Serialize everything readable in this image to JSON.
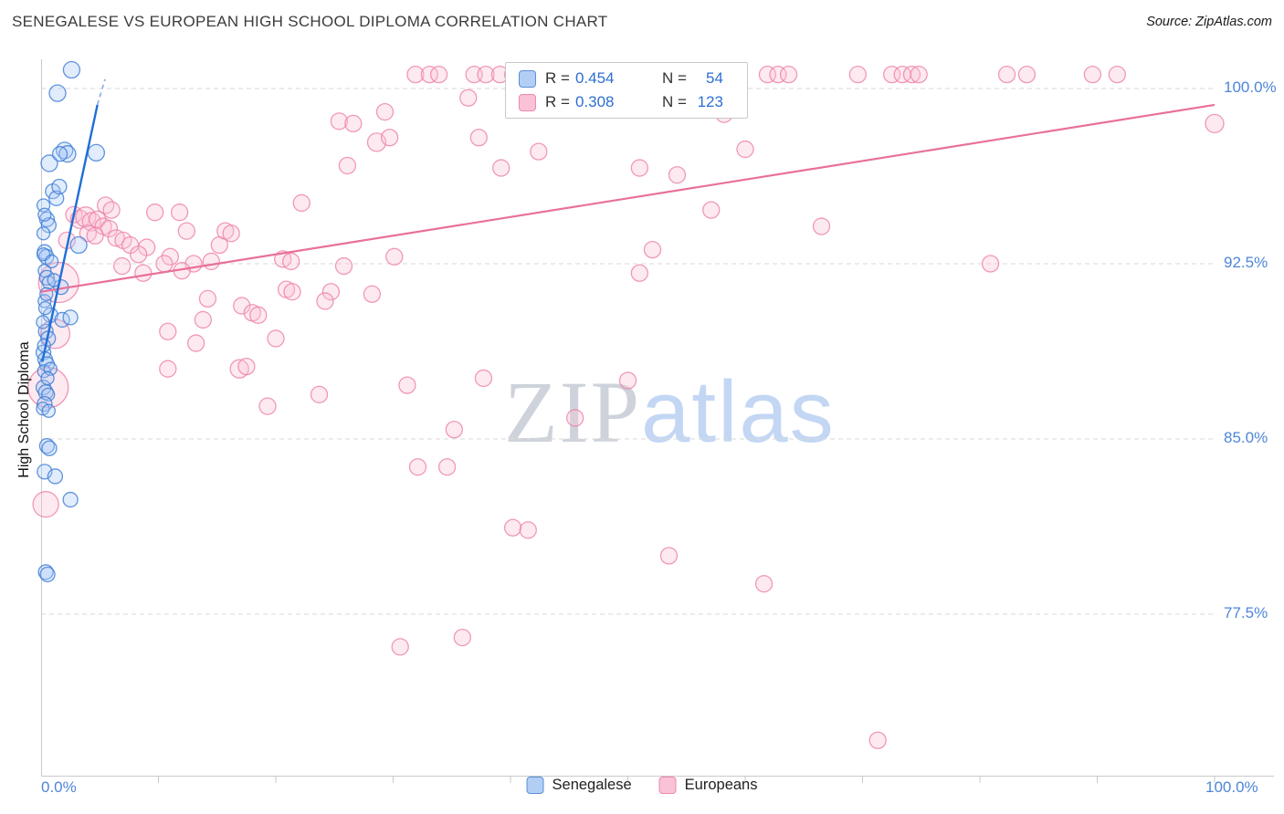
{
  "header": {
    "title": "SENEGALESE VS EUROPEAN HIGH SCHOOL DIPLOMA CORRELATION CHART",
    "source": "Source: ZipAtlas.com"
  },
  "y_axis": {
    "title": "High School Diploma",
    "tick_labels": [
      "100.0%",
      "92.5%",
      "85.0%",
      "77.5%"
    ]
  },
  "x_axis": {
    "min_label": "0.0%",
    "max_label": "100.0%"
  },
  "watermark": {
    "part1": "ZIP",
    "part2": "atlas"
  },
  "legend_box": {
    "rows": [
      {
        "series": "Senegalese",
        "r_prefix": "R =",
        "r_value": "0.454",
        "n_prefix": "N =",
        "n_value": "54"
      },
      {
        "series": "Europeans",
        "r_prefix": "R =",
        "r_value": "0.308",
        "n_prefix": "N =",
        "n_value": "123"
      }
    ]
  },
  "bottom_legend": {
    "items": [
      {
        "label": "Senegalese"
      },
      {
        "label": "Europeans"
      }
    ]
  },
  "colors": {
    "grid": "#d9d9d9",
    "axis": "#c9c9c9",
    "axis_label_blue": "#4e86d8",
    "blue_fill": "#a8c8f5",
    "blue_stroke": "#3b7bd4",
    "pink_fill": "#f9c2d4",
    "pink_stroke": "#ee7fa9",
    "trend_blue": "#1f6fd6",
    "trend_blue_dash": "#8fb4e8",
    "trend_pink": "#e8709a"
  },
  "chart_data": {
    "type": "scatter",
    "title": "SENEGALESE VS EUROPEAN HIGH SCHOOL DIPLOMA CORRELATION CHART",
    "xlabel": "",
    "ylabel": "High School Diploma",
    "xlim": [
      0,
      100
    ],
    "ylim": [
      70.6,
      101.3
    ],
    "y_ticks": [
      100,
      92.5,
      85,
      77.5
    ],
    "x_tick_step": 10,
    "grid": "dashed-horizontal",
    "legend_position": "top-center",
    "series": [
      {
        "name": "Europeans",
        "R": 0.308,
        "N": 123,
        "fill": "#f9c2d4",
        "stroke": "#ee7fa9",
        "points": [
          [
            31.9,
            100.6,
            9
          ],
          [
            33.1,
            100.6,
            9
          ],
          [
            33.9,
            100.6,
            9
          ],
          [
            36.9,
            100.6,
            9
          ],
          [
            37.9,
            100.6,
            9
          ],
          [
            39.1,
            100.6,
            9
          ],
          [
            40.2,
            100.6,
            9
          ],
          [
            41.3,
            100.6,
            9
          ],
          [
            42.4,
            100.6,
            9
          ],
          [
            43.6,
            100.6,
            9
          ],
          [
            44.7,
            100.6,
            9
          ],
          [
            45.8,
            100.6,
            9
          ],
          [
            47.0,
            100.6,
            9
          ],
          [
            48.2,
            100.6,
            9
          ],
          [
            49.3,
            100.6,
            9
          ],
          [
            50.5,
            100.6,
            9
          ],
          [
            51.6,
            100.6,
            9
          ],
          [
            52.8,
            100.6,
            9
          ],
          [
            53.9,
            100.6,
            9
          ],
          [
            55.0,
            100.6,
            9
          ],
          [
            61.9,
            100.6,
            9
          ],
          [
            62.8,
            100.6,
            9
          ],
          [
            63.7,
            100.6,
            9
          ],
          [
            69.6,
            100.6,
            9
          ],
          [
            72.5,
            100.6,
            9
          ],
          [
            73.4,
            100.6,
            9
          ],
          [
            74.2,
            100.6,
            9
          ],
          [
            74.8,
            100.6,
            9
          ],
          [
            82.3,
            100.6,
            9
          ],
          [
            84.0,
            100.6,
            9
          ],
          [
            89.6,
            100.6,
            9
          ],
          [
            91.7,
            100.6,
            9
          ],
          [
            36.4,
            99.6,
            9
          ],
          [
            58.2,
            98.9,
            9
          ],
          [
            100.0,
            98.5,
            10
          ],
          [
            25.4,
            98.6,
            9
          ],
          [
            26.6,
            98.5,
            9
          ],
          [
            29.3,
            99.0,
            9
          ],
          [
            28.6,
            97.7,
            10
          ],
          [
            29.7,
            97.9,
            9
          ],
          [
            26.1,
            96.7,
            9
          ],
          [
            60.0,
            97.4,
            9
          ],
          [
            37.3,
            97.9,
            9
          ],
          [
            39.2,
            96.6,
            9
          ],
          [
            51.0,
            96.6,
            9
          ],
          [
            54.2,
            96.3,
            9
          ],
          [
            22.2,
            95.1,
            9
          ],
          [
            57.1,
            94.8,
            9
          ],
          [
            66.5,
            94.1,
            9
          ],
          [
            42.4,
            97.3,
            9
          ],
          [
            2.8,
            94.6,
            9
          ],
          [
            3.3,
            94.4,
            10
          ],
          [
            3.8,
            94.5,
            11
          ],
          [
            4.3,
            94.3,
            10
          ],
          [
            4.8,
            94.4,
            9
          ],
          [
            5.3,
            94.1,
            9
          ],
          [
            5.8,
            94.0,
            9
          ],
          [
            4.0,
            93.8,
            9
          ],
          [
            4.6,
            93.7,
            9
          ],
          [
            6.4,
            93.6,
            9
          ],
          [
            7.0,
            93.5,
            9
          ],
          [
            7.6,
            93.3,
            9
          ],
          [
            9.7,
            94.7,
            9
          ],
          [
            11.8,
            94.7,
            9
          ],
          [
            12.4,
            93.9,
            9
          ],
          [
            15.2,
            93.3,
            9
          ],
          [
            15.7,
            93.9,
            9
          ],
          [
            16.2,
            93.8,
            9
          ],
          [
            5.5,
            95.0,
            9
          ],
          [
            6.0,
            94.8,
            9
          ],
          [
            2.2,
            93.5,
            9
          ],
          [
            9.0,
            93.2,
            9
          ],
          [
            11.0,
            92.8,
            9
          ],
          [
            8.3,
            92.9,
            9
          ],
          [
            8.7,
            92.1,
            9
          ],
          [
            10.5,
            92.5,
            9
          ],
          [
            13.0,
            92.5,
            9
          ],
          [
            14.5,
            92.6,
            9
          ],
          [
            6.9,
            92.4,
            9
          ],
          [
            20.6,
            92.7,
            9
          ],
          [
            21.3,
            92.6,
            9
          ],
          [
            25.8,
            92.4,
            9
          ],
          [
            30.1,
            92.8,
            9
          ],
          [
            52.1,
            93.1,
            9
          ],
          [
            51.0,
            92.1,
            9
          ],
          [
            80.9,
            92.5,
            9
          ],
          [
            24.7,
            91.3,
            9
          ],
          [
            28.2,
            91.2,
            9
          ],
          [
            14.2,
            91.0,
            9
          ],
          [
            17.1,
            90.7,
            9
          ],
          [
            18.0,
            90.4,
            9
          ],
          [
            18.5,
            90.3,
            9
          ],
          [
            20.9,
            91.4,
            9
          ],
          [
            21.4,
            91.3,
            9
          ],
          [
            1.5,
            91.7,
            22
          ],
          [
            1.2,
            89.5,
            16
          ],
          [
            0.6,
            87.2,
            22
          ],
          [
            0.4,
            82.2,
            14
          ],
          [
            10.8,
            89.6,
            9
          ],
          [
            13.2,
            89.1,
            9
          ],
          [
            10.8,
            88.0,
            9
          ],
          [
            16.9,
            88.0,
            10
          ],
          [
            17.5,
            88.1,
            9
          ],
          [
            19.3,
            86.4,
            9
          ],
          [
            23.7,
            86.9,
            9
          ],
          [
            31.2,
            87.3,
            9
          ],
          [
            37.7,
            87.6,
            9
          ],
          [
            50.0,
            87.5,
            9
          ],
          [
            45.5,
            85.9,
            9
          ],
          [
            35.2,
            85.4,
            9
          ],
          [
            32.1,
            83.8,
            9
          ],
          [
            34.6,
            83.8,
            9
          ],
          [
            40.2,
            81.2,
            9
          ],
          [
            41.5,
            81.1,
            9
          ],
          [
            53.5,
            80.0,
            9
          ],
          [
            61.6,
            78.8,
            9
          ],
          [
            30.6,
            76.1,
            9
          ],
          [
            35.9,
            76.5,
            9
          ],
          [
            71.3,
            72.1,
            9
          ],
          [
            12.0,
            92.2,
            9
          ],
          [
            13.8,
            90.1,
            9
          ],
          [
            24.2,
            90.9,
            9
          ],
          [
            20.0,
            89.3,
            9
          ]
        ]
      },
      {
        "name": "Senegalese",
        "R": 0.454,
        "N": 54,
        "fill": "#a8c8f5",
        "stroke": "#3b7bd4",
        "points": [
          [
            1.4,
            99.8,
            9
          ],
          [
            2.6,
            100.8,
            9
          ],
          [
            2.0,
            97.35,
            9
          ],
          [
            2.25,
            97.2,
            9
          ],
          [
            4.7,
            97.25,
            9
          ],
          [
            0.7,
            96.8,
            9
          ],
          [
            1.0,
            95.6,
            8
          ],
          [
            1.3,
            95.3,
            8
          ],
          [
            1.55,
            95.8,
            8
          ],
          [
            0.5,
            94.4,
            8
          ],
          [
            0.65,
            94.15,
            8
          ],
          [
            0.2,
            93.8,
            7
          ],
          [
            0.3,
            93.0,
            8
          ],
          [
            0.45,
            92.8,
            8
          ],
          [
            3.2,
            93.3,
            9
          ],
          [
            0.2,
            92.9,
            7
          ],
          [
            0.3,
            92.2,
            7
          ],
          [
            0.5,
            91.9,
            8
          ],
          [
            0.65,
            91.7,
            7
          ],
          [
            1.7,
            91.5,
            8
          ],
          [
            0.3,
            90.9,
            7
          ],
          [
            0.8,
            90.3,
            8
          ],
          [
            1.8,
            90.1,
            8
          ],
          [
            2.5,
            90.2,
            8
          ],
          [
            0.4,
            89.6,
            8
          ],
          [
            0.6,
            89.3,
            8
          ],
          [
            0.2,
            88.7,
            8
          ],
          [
            0.35,
            88.4,
            8
          ],
          [
            0.5,
            88.2,
            8
          ],
          [
            0.25,
            87.9,
            7
          ],
          [
            0.2,
            87.2,
            8
          ],
          [
            0.4,
            87.0,
            8
          ],
          [
            0.6,
            86.9,
            7
          ],
          [
            0.3,
            86.5,
            8
          ],
          [
            0.15,
            86.3,
            7
          ],
          [
            0.5,
            84.7,
            8
          ],
          [
            0.7,
            84.6,
            8
          ],
          [
            0.3,
            83.6,
            8
          ],
          [
            1.2,
            83.4,
            8
          ],
          [
            2.5,
            82.4,
            8
          ],
          [
            0.4,
            79.3,
            8
          ],
          [
            0.55,
            79.2,
            8
          ],
          [
            0.9,
            92.6,
            7
          ],
          [
            1.1,
            91.8,
            7
          ],
          [
            0.15,
            90.0,
            7
          ],
          [
            0.25,
            89.0,
            7
          ],
          [
            0.8,
            88.0,
            7
          ],
          [
            0.2,
            95.0,
            7
          ],
          [
            0.3,
            94.6,
            7
          ],
          [
            1.6,
            97.2,
            8
          ],
          [
            0.45,
            91.2,
            7
          ],
          [
            0.35,
            90.6,
            7
          ],
          [
            0.55,
            87.6,
            7
          ],
          [
            0.65,
            86.2,
            7
          ]
        ]
      }
    ],
    "trend_lines": [
      {
        "series": "Europeans",
        "x": [
          0,
          100
        ],
        "y": [
          91.3,
          99.3
        ],
        "style": "solid",
        "color": "#e8709a",
        "width": 2.2
      },
      {
        "series": "Senegalese",
        "x": [
          0.1,
          4.8
        ],
        "y": [
          88.3,
          99.3
        ],
        "style": "solid",
        "color": "#1f6fd6",
        "width": 2.4
      },
      {
        "series": "Senegalese",
        "x": [
          4.8,
          5.45
        ],
        "y": [
          99.3,
          100.4
        ],
        "style": "dashed",
        "color": "#8fb4e8",
        "width": 1.8
      }
    ]
  }
}
